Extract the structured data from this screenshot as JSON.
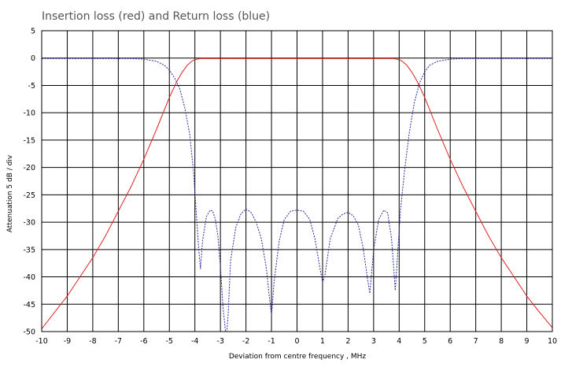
{
  "chart_data": {
    "type": "line",
    "title": "Insertion loss (red) and Return loss (blue)",
    "xlabel": "Deviation from centre frequency ,  MHz",
    "ylabel": "Attenuation  5 dB / div",
    "xlim": [
      -10,
      10
    ],
    "ylim": [
      -50,
      5
    ],
    "grid": true,
    "x_ticks": [
      "-10",
      "-9",
      "-8",
      "-7",
      "-6",
      "-5",
      "-4",
      "-3",
      "-2",
      "-1",
      "0",
      "1",
      "2",
      "3",
      "4",
      "5",
      "6",
      "7",
      "8",
      "9",
      "10"
    ],
    "y_ticks": [
      "5",
      "0",
      "-5",
      "-10",
      "-15",
      "-20",
      "-25",
      "-30",
      "-35",
      "-40",
      "-45",
      "-50"
    ],
    "series": [
      {
        "color": "#e02020",
        "style": "solid",
        "x": [
          -10,
          -9.5,
          -9,
          -8.5,
          -8,
          -7.5,
          -7,
          -6.5,
          -6,
          -5.5,
          -5,
          -4.7,
          -4.5,
          -4.3,
          -4.1,
          -4,
          -3.8,
          -3.5,
          3.5,
          3.8,
          4,
          4.1,
          4.3,
          4.5,
          4.7,
          5,
          5.5,
          6,
          6.5,
          7,
          7.5,
          8,
          8.5,
          9,
          9.5,
          10
        ],
        "y": [
          -49.5,
          -46.5,
          -43.5,
          -40,
          -36.5,
          -32.5,
          -28,
          -23.5,
          -18.5,
          -13,
          -7.2,
          -4.2,
          -2.6,
          -1.3,
          -0.5,
          -0.3,
          -0.1,
          -0.1,
          -0.1,
          -0.1,
          -0.3,
          -0.5,
          -1.3,
          -2.6,
          -4.2,
          -7.2,
          -13,
          -18.5,
          -23.5,
          -28,
          -32.5,
          -36.5,
          -40,
          -43.5,
          -46.5,
          -49.3
        ]
      },
      {
        "color": "#2a2aa0",
        "style": "dashed",
        "x": [
          -10,
          -6.5,
          -6,
          -5.5,
          -5.2,
          -5,
          -4.8,
          -4.6,
          -4.4,
          -4.2,
          -4.05,
          -3.95,
          -3.85,
          -3.78,
          -3.7,
          -3.55,
          -3.4,
          -3.3,
          -3.2,
          -3.1,
          -3.0,
          -2.9,
          -2.8,
          -2.75,
          -2.7,
          -2.6,
          -2.4,
          -2.2,
          -2.0,
          -1.8,
          -1.6,
          -1.4,
          -1.2,
          -1.1,
          -1.0,
          -0.9,
          -0.7,
          -0.5,
          -0.25,
          0,
          0.25,
          0.5,
          0.7,
          0.9,
          1.0,
          1.1,
          1.3,
          1.6,
          1.8,
          2.0,
          2.2,
          2.4,
          2.6,
          2.75,
          2.85,
          3.0,
          3.2,
          3.4,
          3.55,
          3.7,
          3.78,
          3.85,
          3.95,
          4.05,
          4.2,
          4.4,
          4.6,
          4.8,
          5.0,
          5.2,
          5.5,
          6.0,
          6.5,
          7.0,
          10
        ],
        "y": [
          -0.1,
          -0.1,
          -0.2,
          -0.6,
          -1.3,
          -2.2,
          -3.6,
          -5.5,
          -9,
          -14,
          -21,
          -28,
          -35,
          -38.5,
          -33.5,
          -29,
          -27.8,
          -28,
          -29.5,
          -32.5,
          -38,
          -45.5,
          -50,
          -50,
          -47,
          -37,
          -31,
          -28.5,
          -27.6,
          -28.2,
          -30,
          -33,
          -38.5,
          -43,
          -47,
          -41,
          -33.5,
          -29.5,
          -28,
          -27.8,
          -28,
          -29.5,
          -33,
          -38.5,
          -41,
          -39.5,
          -33,
          -29.3,
          -28.5,
          -28.2,
          -28.8,
          -30.5,
          -35,
          -40,
          -43,
          -35,
          -29.5,
          -27.8,
          -28.3,
          -33,
          -38,
          -42.5,
          -35,
          -28,
          -21,
          -13.5,
          -8,
          -4.5,
          -2.5,
          -1.3,
          -0.6,
          -0.2,
          -0.1,
          -0.1,
          -0.1
        ]
      }
    ]
  }
}
